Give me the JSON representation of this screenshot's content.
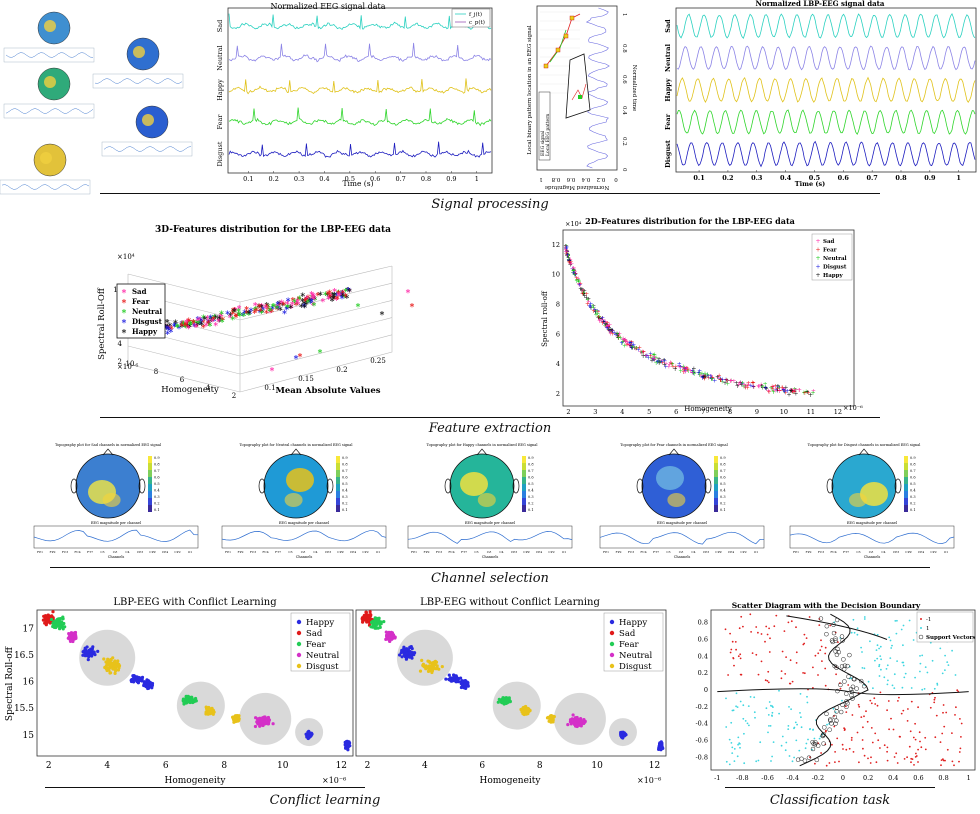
{
  "sections": {
    "signal": "Signal processing",
    "feature": "Feature extraction",
    "channel": "Channel selection",
    "conflict": "Conflict learning",
    "classification": "Classification task"
  },
  "colors": {
    "sad": "#2bd1c0",
    "neutral": "#8c84e6",
    "happy": "#e0c21a",
    "fear": "#2fd52b",
    "disgust": "#1d1dbf",
    "pt_happy": "#2a2ae0",
    "pt_sad": "#e01a1a",
    "pt_fear": "#22cc55",
    "pt_neutral": "#d430c8",
    "pt_disgust": "#e8c21a"
  },
  "chart_data": [
    {
      "id": "eeg",
      "type": "line",
      "title": "Normalized EEG signal data",
      "xlabel": "Time (s)",
      "ylabel": "",
      "series_labels": [
        "Sad",
        "Neutral",
        "Happy",
        "Fear",
        "Disgust"
      ],
      "legend": [
        "f_j(t)",
        "c_p(t)"
      ],
      "x_ticks": [
        "0.1",
        "0.2",
        "0.3",
        "0.4",
        "0.5",
        "0.6",
        "0.7",
        "0.8",
        "0.9",
        "1"
      ],
      "xlim": [
        0.02,
        1.06
      ]
    },
    {
      "id": "lbp_pattern",
      "type": "line",
      "xlabel": "Normalized Magnitude",
      "ylabel": "Local binary pattern location in an EEG signal",
      "y2label": "Normalized time",
      "x_ticks": [
        "1",
        "0.8",
        "0.6",
        "0.4",
        "0.2",
        "0"
      ],
      "y_ticks": [
        "0",
        "0.2",
        "0.4",
        "0.6",
        "0.8",
        "1"
      ],
      "legend": [
        "EEG signal",
        "Local EEG pattern"
      ]
    },
    {
      "id": "lbp_eeg",
      "type": "line",
      "title": "Normalized LBP-EEG signal data",
      "xlabel": "Time (s)",
      "series_labels": [
        "Sad",
        "Neutral",
        "Happy",
        "Fear",
        "Disgust"
      ],
      "x_ticks": [
        "0.1",
        "0.2",
        "0.3",
        "0.4",
        "0.5",
        "0.6",
        "0.7",
        "0.8",
        "0.9",
        "1"
      ],
      "xlim": [
        0.02,
        1.06
      ]
    },
    {
      "id": "scatter3d",
      "type": "scatter",
      "title": "3D-Features distribution for the LBP-EEG data",
      "xlabel": "Mean Absolute Values",
      "ylabel": "Homogeneity",
      "zlabel": "Spectral Roll-Off",
      "x_ticks": [
        "0.1",
        "0.15",
        "0.2",
        "0.25"
      ],
      "y_ticks": [
        "2",
        "4",
        "6",
        "8",
        "10"
      ],
      "z_ticks": [
        "2",
        "4",
        "6",
        "8",
        "10"
      ],
      "y_exp": "×10⁻⁶",
      "z_exp": "×10⁴",
      "legend": [
        "Sad",
        "Fear",
        "Neutral",
        "Disgust",
        "Happy"
      ],
      "legend_colors": [
        "#ff2aa8",
        "#e81818",
        "#22cc22",
        "#1a1ae0",
        "#111111"
      ]
    },
    {
      "id": "scatter2d",
      "type": "scatter",
      "title": "2D-Features distribution for the LBP-EEG data",
      "xlabel": "Homogeneity",
      "ylabel": "Spectral roll-off",
      "x_exp": "×10⁻⁶",
      "y_exp": "×10⁴",
      "x_ticks": [
        2,
        3,
        4,
        5,
        6,
        7,
        8,
        9,
        10,
        11,
        12
      ],
      "y_ticks": [
        2,
        4,
        6,
        8,
        10,
        12
      ],
      "xlim": [
        1.8,
        12.6
      ],
      "ylim": [
        1.2,
        13
      ],
      "legend": [
        "Sad",
        "Fear",
        "Neutral",
        "Disgust",
        "Happy"
      ],
      "legend_colors": [
        "#ff2aa8",
        "#e81818",
        "#22cc22",
        "#1a1ae0",
        "#111111"
      ]
    },
    {
      "id": "conflict_with",
      "type": "scatter",
      "title": "LBP-EEG with Conflict Learning",
      "xlabel": "Homogeneity",
      "ylabel": "Spectral Roll-off",
      "x_exp": "×10⁻⁶",
      "x_ticks": [
        2,
        4,
        6,
        8,
        10,
        12
      ],
      "y_ticks": [
        15,
        15.5,
        16,
        16.5,
        17
      ],
      "xlim": [
        1.6,
        12.4
      ],
      "ylim": [
        14.6,
        17.35
      ],
      "legend": [
        "Happy",
        "Sad",
        "Fear",
        "Neutral",
        "Disgust"
      ]
    },
    {
      "id": "conflict_without",
      "type": "scatter",
      "title": "LBP-EEG without Conflict Learning",
      "xlabel": "Homogeneity",
      "x_exp": "×10⁻⁶",
      "x_ticks": [
        2,
        4,
        6,
        8,
        10,
        12
      ],
      "xlim": [
        1.6,
        12.4
      ],
      "ylim": [
        14.6,
        17.35
      ],
      "legend": [
        "Happy",
        "Sad",
        "Fear",
        "Neutral",
        "Disgust"
      ]
    },
    {
      "id": "svm",
      "type": "scatter",
      "title": "Scatter Diagram with the Decision Boundary",
      "x_ticks": [
        "-1",
        "-0.8",
        "-0.6",
        "-0.4",
        "-0.2",
        "0",
        "0.2",
        "0.4",
        "0.6",
        "0.8",
        "1"
      ],
      "y_ticks": [
        "0.8",
        "0.6",
        "0.4",
        "0.2",
        "0",
        "-0.2",
        "-0.4",
        "-0.6",
        "-0.8"
      ],
      "xlim": [
        -1.05,
        1.05
      ],
      "ylim": [
        -0.95,
        0.95
      ],
      "legend": [
        "-1",
        "1",
        "Support Vectors"
      ]
    }
  ],
  "topo_titles": [
    "Topography plot for Sad channels in normalized EEG signal",
    "Topography plot for Neutral channels in normalized EEG signal",
    "Topography plot for Happy channels in normalized EEG signal",
    "Topography plot for Fear channels in normalized EEG signal",
    "Topography plot for Disgust channels in normalized EEG signal"
  ],
  "topo_sub": "EEG magnitude per channel",
  "topo_xlabel": "Channels",
  "topo_ticks": [
    "0.9",
    "0.8",
    "0.7",
    "0.6",
    "0.5",
    "0.4",
    "0.3",
    "0.2",
    "0.1"
  ],
  "topo_channels": [
    "FP1",
    "FP2",
    "FC3",
    "FC4",
    "FT7",
    "C3",
    "CZ",
    "C4",
    "CP3",
    "CPZ",
    "CP4",
    "CP2",
    "O1"
  ]
}
